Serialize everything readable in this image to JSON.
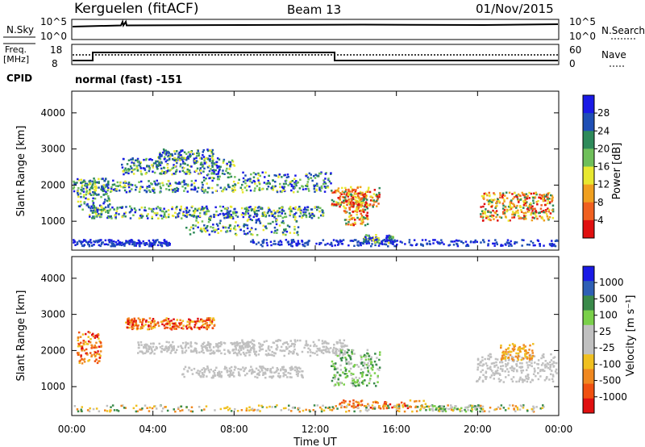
{
  "header": {
    "station": "Kerguelen (fitACF)",
    "beam": "Beam 13",
    "date": "01/Nov/2015"
  },
  "noise_panel": {
    "left_label": "N.Sky",
    "right_label": "N.Search",
    "left_ticks": [
      "10^5",
      "10^0"
    ],
    "right_ticks": [
      "10^5",
      "10^0"
    ]
  },
  "freq_panel": {
    "left_label_line1": "Freq.",
    "left_label_line2": "[MHz]",
    "left_ticks": [
      "18",
      "8"
    ],
    "right_label": "Nave",
    "right_ticks": [
      "60",
      "0"
    ],
    "cpid_label": "CPID",
    "program": "normal (fast) -151"
  },
  "colors": {
    "power_scale": [
      "#1a1ae6",
      "#1f4fb5",
      "#2e8a5a",
      "#6fbf5a",
      "#e8e830",
      "#f0a020",
      "#f06020",
      "#e01010"
    ],
    "velocity_scale": [
      "#1a1ae6",
      "#2e5fb5",
      "#3a8a4a",
      "#7ad04a",
      "#c0c0c0",
      "#c0c0c0",
      "#f0c020",
      "#f08820",
      "#f05010",
      "#e01010"
    ]
  },
  "chart_data": [
    {
      "type": "heatmap",
      "name": "power",
      "ylabel": "Slant Range [km]",
      "yticks": [
        "1000",
        "2000",
        "3000",
        "4000"
      ],
      "ylim": [
        200,
        4600
      ],
      "colorbar_label": "Power [dB]",
      "colorbar_ticks": [
        "4",
        "8",
        "12",
        "16",
        "20",
        "24",
        "28"
      ]
    },
    {
      "type": "heatmap",
      "name": "velocity",
      "ylabel": "Slant Range [km]",
      "yticks": [
        "1000",
        "2000",
        "3000",
        "4000"
      ],
      "ylim": [
        200,
        4600
      ],
      "colorbar_label": "Velocity [m s⁻¹]",
      "colorbar_ticks": [
        "1000",
        "500",
        "100",
        "25",
        "-25",
        "-100",
        "-500",
        "-1000"
      ]
    }
  ],
  "xaxis": {
    "label": "Time UT",
    "ticks": [
      "00:00",
      "04:00",
      "08:00",
      "12:00",
      "16:00",
      "20:00",
      "00:00"
    ],
    "xlim_hours": [
      0,
      24
    ]
  }
}
